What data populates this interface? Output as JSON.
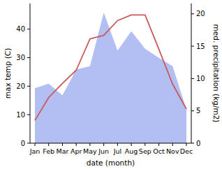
{
  "chart_data": {
    "type": "line",
    "x_label": "date (month)",
    "y_label": "max temp (C)",
    "y2_label": "med. precipitation (kg/m2)",
    "categories": [
      "Jan",
      "Feb",
      "Mar",
      "Apr",
      "May",
      "Jun",
      "Jul",
      "Aug",
      "Sep",
      "Oct",
      "Nov",
      "Dec"
    ],
    "series": [
      {
        "type": "area",
        "axis": "y2",
        "color": "#b3bff2",
        "values": [
          8.5,
          9.2,
          7.4,
          11.4,
          11.9,
          20.2,
          14.3,
          17.3,
          14.6,
          13.2,
          11.9,
          5.2
        ]
      },
      {
        "type": "line",
        "color": "#c85a5a",
        "values": [
          8,
          16,
          21,
          25.6,
          36.6,
          37.8,
          43,
          45,
          45,
          33,
          20.7,
          12
        ]
      }
    ],
    "ylim": [
      0,
      49
    ],
    "yticks": [
      0,
      10,
      20,
      30,
      40
    ],
    "y2lim": [
      0,
      21.6
    ],
    "y2ticks": [
      0,
      5,
      10,
      15,
      20
    ],
    "grid": false
  }
}
